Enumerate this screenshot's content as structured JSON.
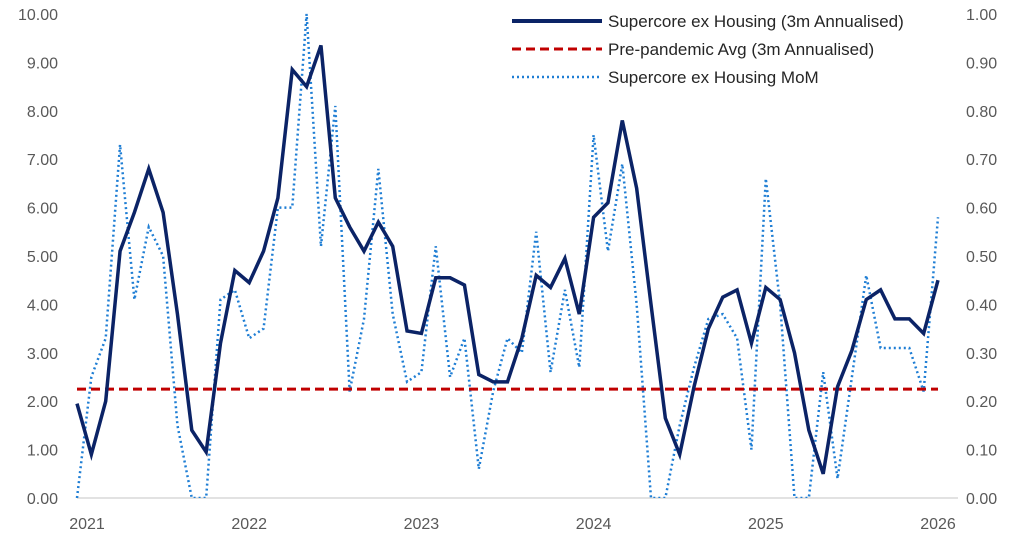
{
  "chart_data": {
    "type": "line",
    "title": "",
    "xlabel": "",
    "ylabel": "",
    "y2label": "",
    "x_tick_labels": [
      "2021",
      "2022",
      "2023",
      "2024",
      "2025",
      "2026"
    ],
    "x_start": "2021-01",
    "x_frequency": "monthly",
    "ylim": [
      0,
      10
    ],
    "y_tick_labels": [
      "0.00",
      "1.00",
      "2.00",
      "3.00",
      "4.00",
      "5.00",
      "6.00",
      "7.00",
      "8.00",
      "9.00",
      "10.00"
    ],
    "y2lim": [
      0,
      1
    ],
    "y2_tick_labels": [
      "0.00",
      "0.10",
      "0.20",
      "0.30",
      "0.40",
      "0.50",
      "0.60",
      "0.70",
      "0.80",
      "0.90",
      "1.00"
    ],
    "grid": false,
    "legend_position": "top-right",
    "series": [
      {
        "name": "Supercore ex Housing (3m Annualised)",
        "axis": "left",
        "style": "solid",
        "color": "#0b2366",
        "values": [
          1.95,
          0.9,
          2.0,
          5.1,
          5.9,
          6.8,
          5.9,
          3.8,
          1.4,
          0.95,
          3.2,
          4.7,
          4.45,
          5.1,
          6.2,
          8.85,
          8.5,
          9.35,
          6.2,
          5.6,
          5.1,
          5.7,
          5.2,
          3.45,
          3.4,
          4.55,
          4.55,
          4.4,
          2.55,
          2.4,
          2.4,
          3.3,
          4.6,
          4.35,
          4.95,
          3.8,
          5.8,
          6.1,
          7.8,
          6.4,
          4.0,
          1.65,
          0.9,
          2.3,
          3.5,
          4.15,
          4.3,
          3.2,
          4.35,
          4.1,
          3.0,
          1.4,
          0.5,
          2.3,
          3.05,
          4.1,
          4.3,
          3.7,
          3.7,
          3.4,
          4.5
        ]
      },
      {
        "name": "Pre-pandemic Avg (3m Annualised)",
        "axis": "left",
        "style": "dashed",
        "color": "#c00000",
        "constant": 2.25
      },
      {
        "name": "Supercore ex Housing MoM",
        "axis": "right",
        "style": "dotted",
        "color": "#1f7ed4",
        "values": [
          0.0,
          0.25,
          0.33,
          0.73,
          0.41,
          0.56,
          0.5,
          0.15,
          0.0,
          0.0,
          0.41,
          0.43,
          0.33,
          0.35,
          0.6,
          0.6,
          1.0,
          0.52,
          0.81,
          0.22,
          0.37,
          0.68,
          0.38,
          0.24,
          0.26,
          0.52,
          0.25,
          0.33,
          0.06,
          0.22,
          0.33,
          0.3,
          0.55,
          0.26,
          0.43,
          0.27,
          0.75,
          0.51,
          0.69,
          0.4,
          0.0,
          0.0,
          0.15,
          0.27,
          0.37,
          0.38,
          0.33,
          0.1,
          0.66,
          0.4,
          0.0,
          0.0,
          0.26,
          0.04,
          0.25,
          0.46,
          0.31,
          0.31,
          0.31,
          0.22,
          0.58
        ]
      }
    ]
  }
}
